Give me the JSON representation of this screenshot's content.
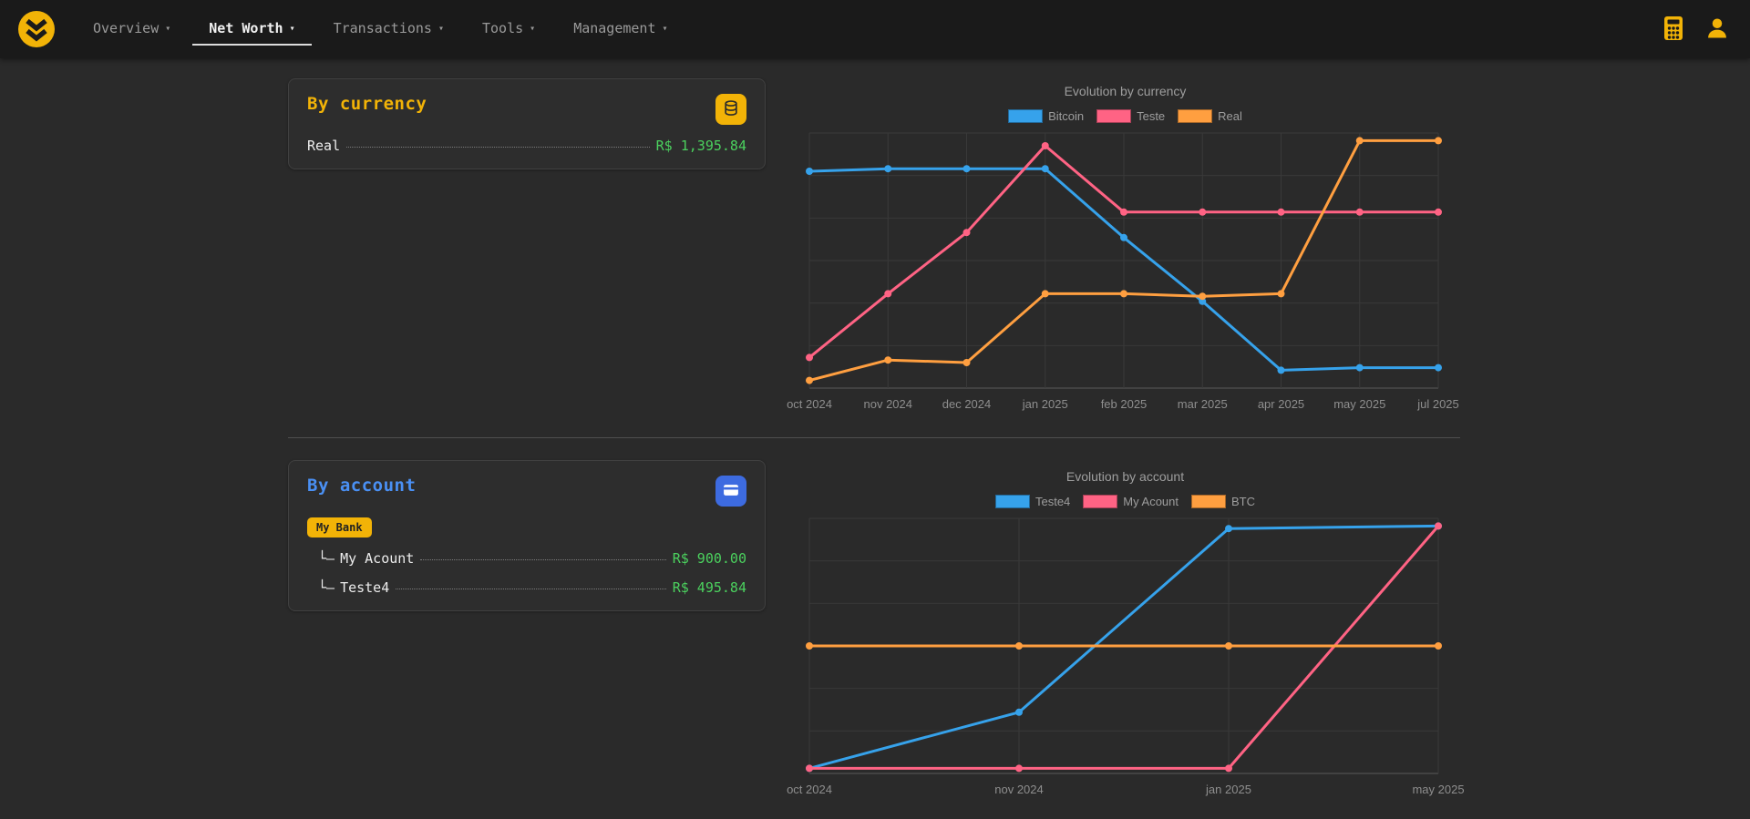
{
  "nav": {
    "caret_icon": "▾",
    "items": [
      {
        "label": "Overview",
        "active": false
      },
      {
        "label": "Net Worth",
        "active": true
      },
      {
        "label": "Transactions",
        "active": false
      },
      {
        "label": "Tools",
        "active": false
      },
      {
        "label": "Management",
        "active": false
      }
    ],
    "right_icons": [
      "calculator-icon",
      "user-icon"
    ]
  },
  "colors": {
    "accent_yellow": "#f2b307",
    "title_blue": "#4a90f4",
    "value_green": "#4bd15e",
    "chart_blue": "#36a2eb",
    "chart_pink": "#ff6384",
    "chart_orange": "#ff9f40",
    "navbar_bg": "#1a1a1a",
    "page_bg": "#2a2a2a",
    "card_bg": "#2d2d2d"
  },
  "by_currency": {
    "title": "By currency",
    "icon": "coins-icon",
    "items": [
      {
        "label": "Real",
        "value": "R$ 1,395.84"
      }
    ]
  },
  "by_account": {
    "title": "By account",
    "icon": "bank-card-icon",
    "group_badge": "My Bank",
    "items": [
      {
        "prefix": "└–",
        "label": "My Acount",
        "value": "R$ 900.00"
      },
      {
        "prefix": "└–",
        "label": "Teste4",
        "value": "R$ 495.84"
      }
    ]
  },
  "chart_data": [
    {
      "type": "line",
      "title": "Evolution by currency",
      "categories": [
        "oct 2024",
        "nov 2024",
        "dec 2024",
        "jan 2025",
        "feb 2025",
        "mar 2025",
        "apr 2025",
        "may 2025",
        "jul 2025"
      ],
      "series": [
        {
          "name": "Bitcoin",
          "color": "#36a2eb",
          "values": [
            85,
            86,
            86,
            86,
            59,
            34,
            7,
            8,
            8
          ]
        },
        {
          "name": "Teste",
          "color": "#ff6384",
          "values": [
            12,
            37,
            61,
            95,
            69,
            69,
            69,
            69,
            69
          ]
        },
        {
          "name": "Real",
          "color": "#ff9f40",
          "values": [
            3,
            11,
            10,
            37,
            37,
            36,
            37,
            97,
            97
          ]
        }
      ],
      "ylim": [
        0,
        100
      ],
      "grid": true,
      "legend_position": "top",
      "note": "y-axis unlabeled; values are relative estimates"
    },
    {
      "type": "line",
      "title": "Evolution by account",
      "categories": [
        "oct 2024",
        "nov 2024",
        "jan 2025",
        "may 2025"
      ],
      "series": [
        {
          "name": "Teste4",
          "color": "#36a2eb",
          "values": [
            2,
            24,
            96,
            97
          ]
        },
        {
          "name": "My Acount",
          "color": "#ff6384",
          "values": [
            2,
            2,
            2,
            97
          ]
        },
        {
          "name": "BTC",
          "color": "#ff9f40",
          "values": [
            50,
            50,
            50,
            50
          ]
        }
      ],
      "ylim": [
        0,
        100
      ],
      "grid": true,
      "legend_position": "top",
      "note": "y-axis unlabeled; values are relative estimates"
    }
  ]
}
